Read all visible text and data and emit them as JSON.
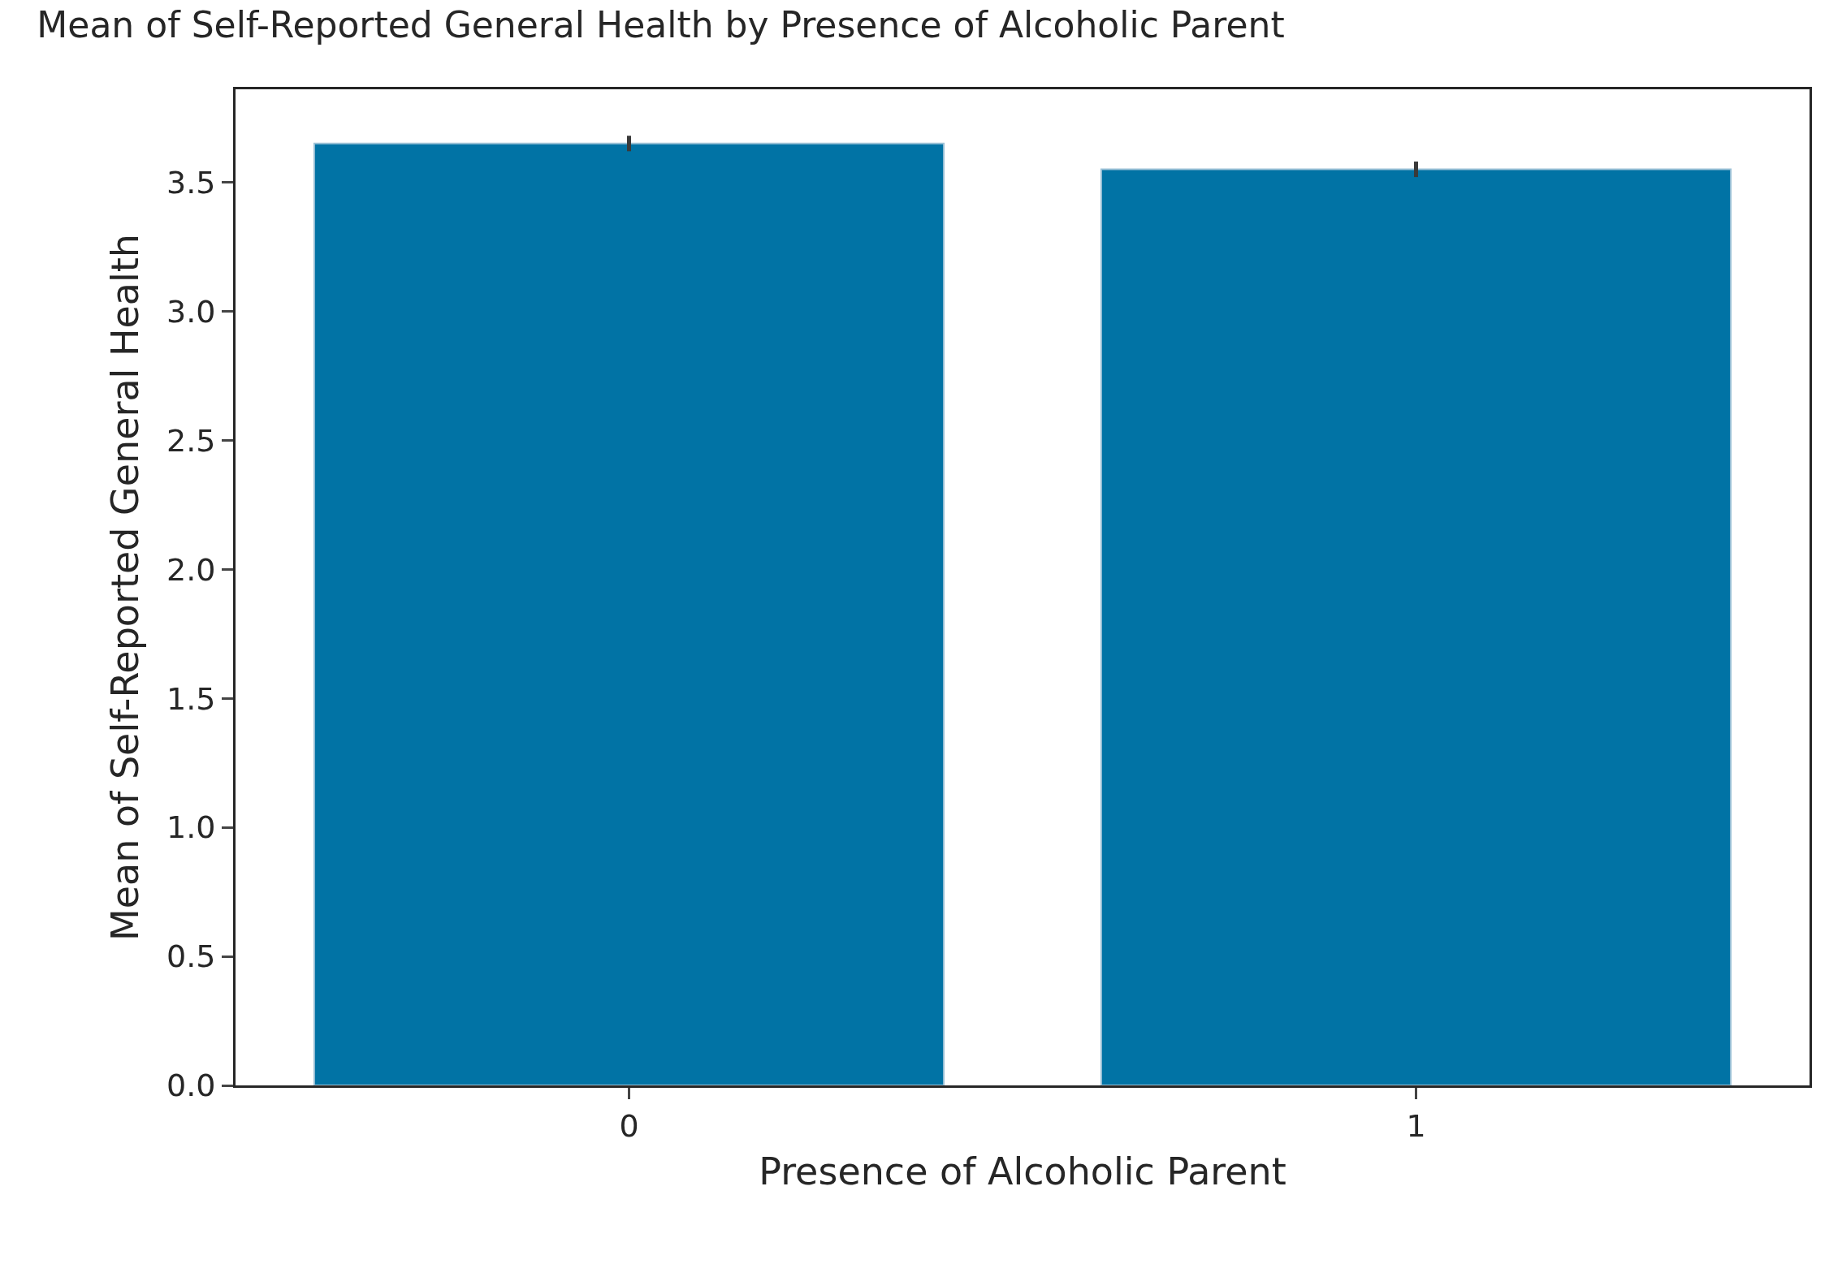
{
  "chart_data": {
    "type": "bar",
    "title": "Mean of Self-Reported General Health by Presence of Alcoholic Parent",
    "xlabel": "Presence of Alcoholic Parent",
    "ylabel": "Mean of Self-Reported General Health",
    "categories": [
      "0",
      "1"
    ],
    "values": [
      3.65,
      3.55
    ],
    "errors": [
      0.03,
      0.03
    ],
    "color": "#0173a5",
    "ylim": [
      0,
      3.86
    ],
    "yticks": [
      {
        "value": 0,
        "label": "0.0"
      },
      0.5,
      {
        "value": 1,
        "label": "1.0"
      },
      1.5,
      {
        "value": 2,
        "label": "2.0"
      },
      2.5,
      {
        "value": 3,
        "label": "3.0"
      },
      3.5
    ]
  }
}
